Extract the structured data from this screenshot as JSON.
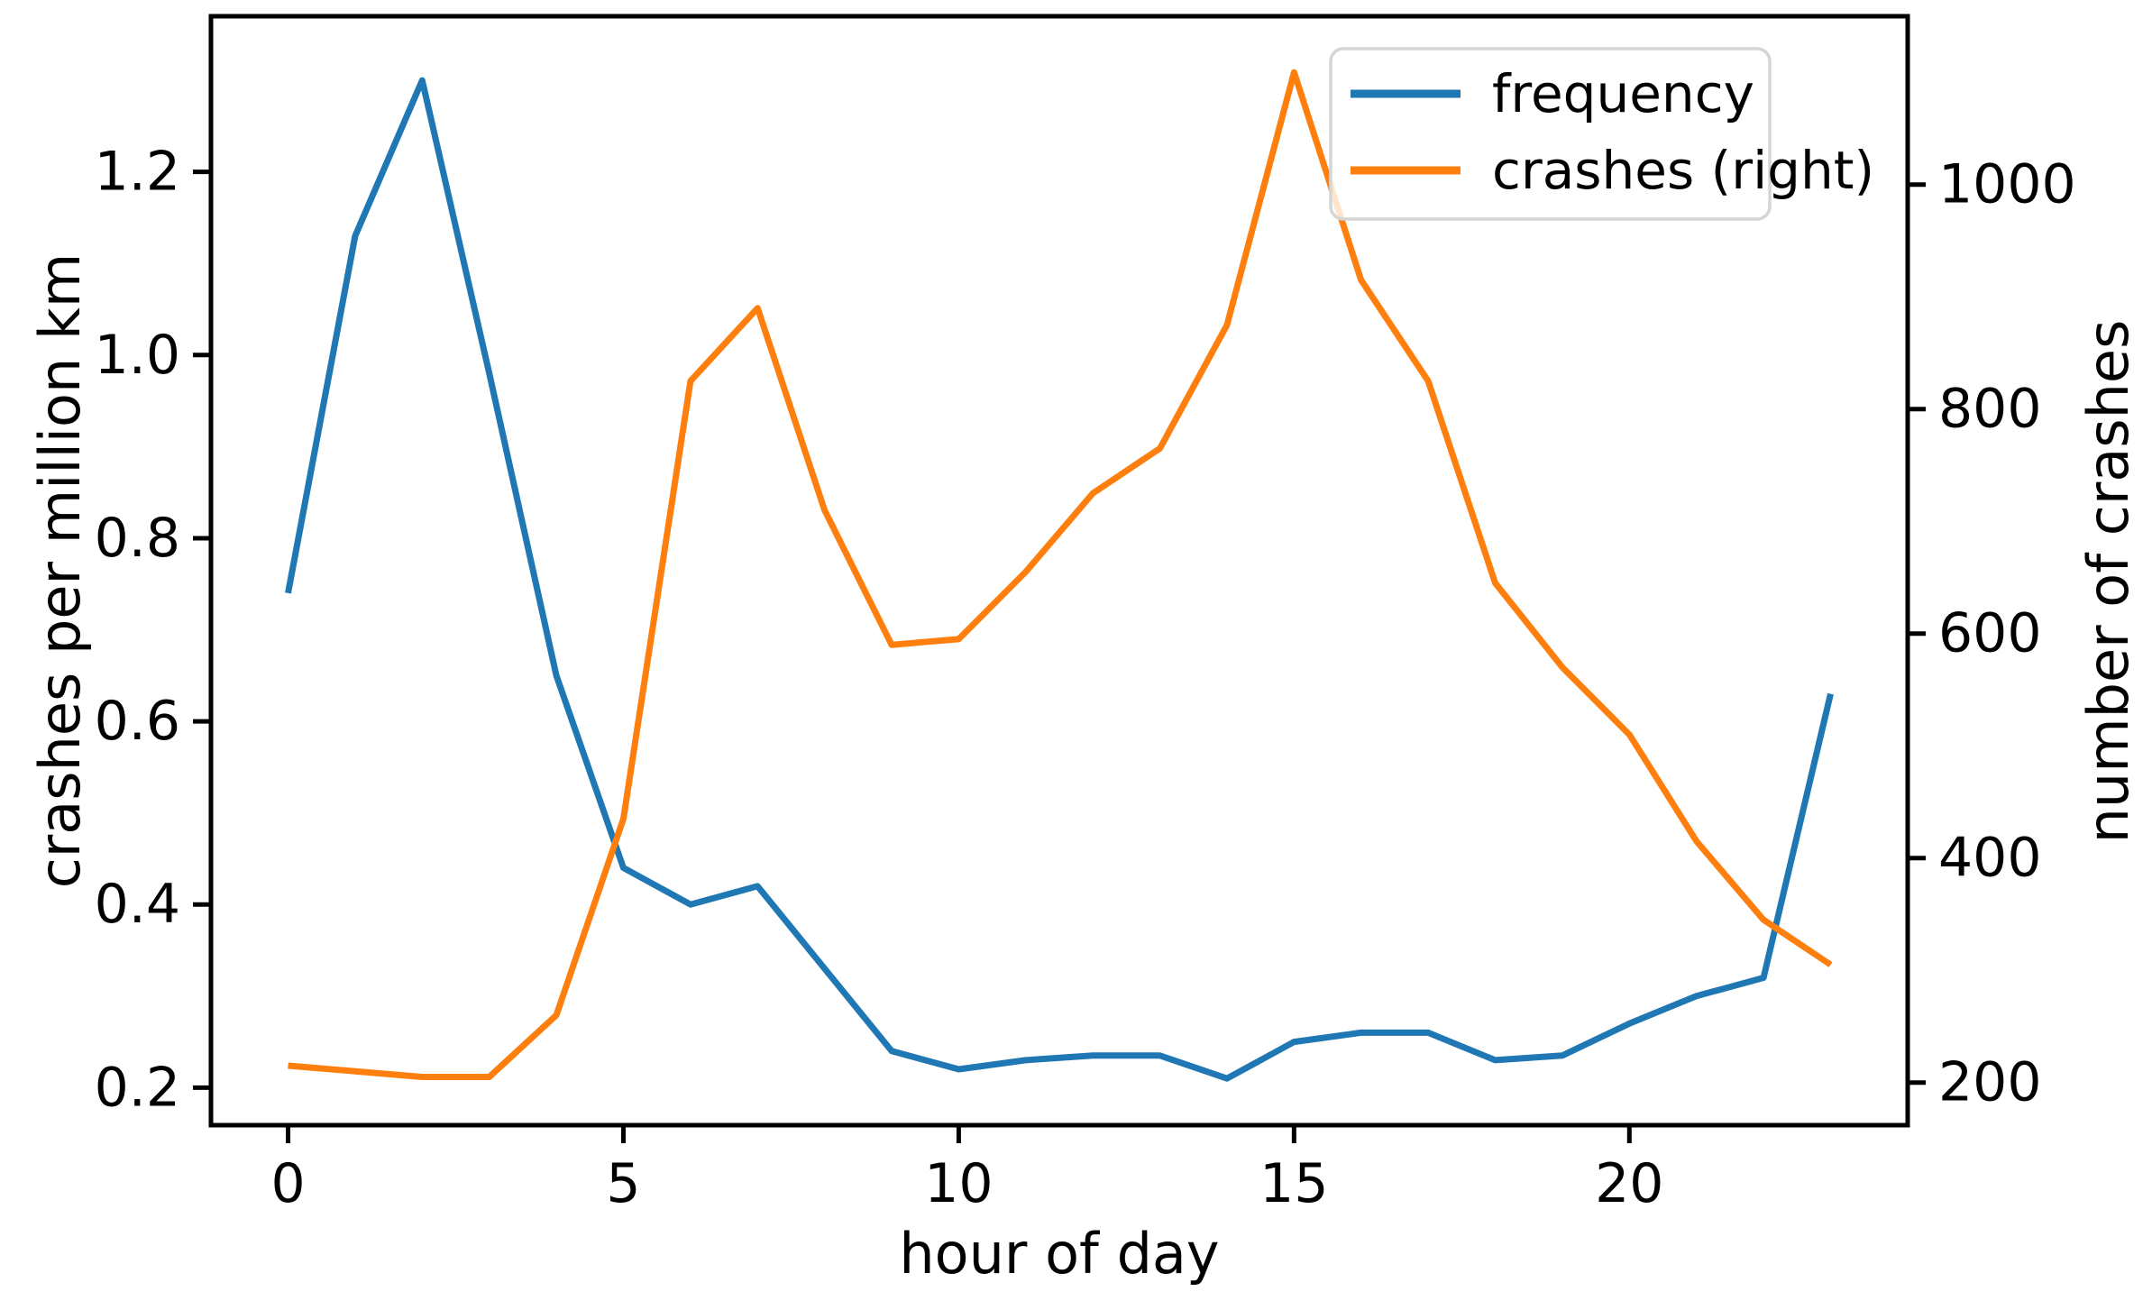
{
  "chart_data": {
    "type": "line",
    "title": "",
    "xlabel": "hour of day",
    "ylabel_left": "crashes per million km",
    "ylabel_right": "number of crashes",
    "grid": false,
    "legend_position": "upper right",
    "x": [
      0,
      1,
      2,
      3,
      4,
      5,
      6,
      7,
      8,
      9,
      10,
      11,
      12,
      13,
      14,
      15,
      16,
      17,
      18,
      19,
      20,
      21,
      22,
      23
    ],
    "series": [
      {
        "name": "frequency",
        "axis": "left",
        "color": "#1f77b4",
        "values": [
          0.74,
          1.13,
          1.3,
          0.98,
          0.65,
          0.44,
          0.4,
          0.42,
          0.33,
          0.24,
          0.22,
          0.23,
          0.235,
          0.235,
          0.21,
          0.25,
          0.26,
          0.26,
          0.23,
          0.235,
          0.27,
          0.3,
          0.32,
          0.63
        ]
      },
      {
        "name": "crashes (right)",
        "axis": "right",
        "color": "#ff7f0e",
        "values": [
          215,
          210,
          205,
          205,
          260,
          435,
          825,
          890,
          710,
          590,
          595,
          655,
          725,
          765,
          875,
          1100,
          915,
          825,
          645,
          570,
          510,
          415,
          345,
          305
        ]
      }
    ],
    "xlim": [
      -1.15,
      24.15
    ],
    "ylim_left": [
      0.159,
      1.37
    ],
    "ylim_right": [
      162,
      1150
    ],
    "xticks": [
      {
        "value": 0,
        "label": "0"
      },
      {
        "value": 5,
        "label": "5"
      },
      {
        "value": 10,
        "label": "10"
      },
      {
        "value": 15,
        "label": "15"
      },
      {
        "value": 20,
        "label": "20"
      }
    ],
    "yticks_left": [
      {
        "value": 0.2,
        "label": "0.2"
      },
      {
        "value": 0.4,
        "label": "0.4"
      },
      {
        "value": 0.6,
        "label": "0.6"
      },
      {
        "value": 0.8,
        "label": "0.8"
      },
      {
        "value": 1.0,
        "label": "1.0"
      },
      {
        "value": 1.2,
        "label": "1.2"
      }
    ],
    "yticks_right": [
      {
        "value": 200,
        "label": "200"
      },
      {
        "value": 400,
        "label": "400"
      },
      {
        "value": 600,
        "label": "600"
      },
      {
        "value": 800,
        "label": "800"
      },
      {
        "value": 1000,
        "label": "1000"
      }
    ],
    "legend": {
      "entries": [
        {
          "label": "frequency",
          "color": "#1f77b4"
        },
        {
          "label": "crashes (right)",
          "color": "#ff7f0e"
        }
      ]
    }
  }
}
